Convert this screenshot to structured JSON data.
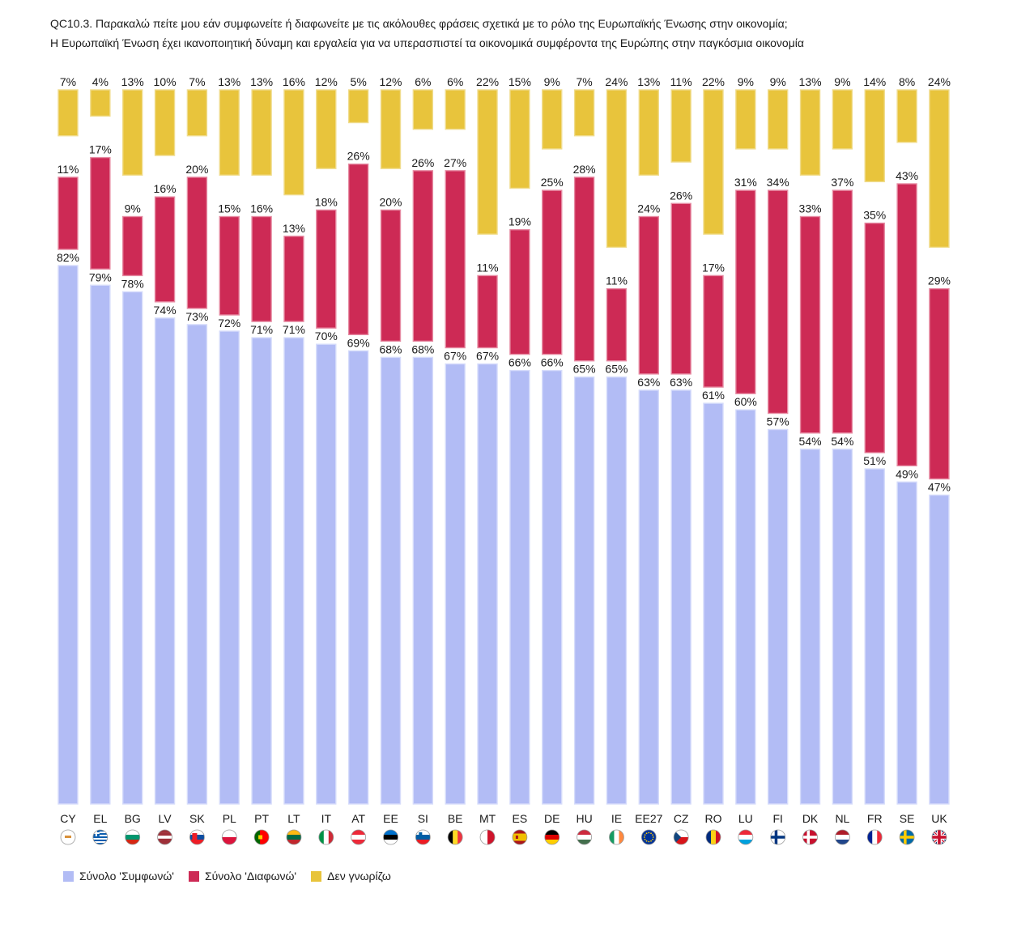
{
  "title": {
    "line1": "QC10.3. Παρακαλώ πείτε μου εάν συμφωνείτε ή διαφωνείτε με τις ακόλουθες φράσεις σχετικά με το ρόλο της Ευρωπαϊκής Ένωσης στην οικονομία;",
    "line2": "Η Ευρωπαϊκή Ένωση έχει ικανοποιητική δύναμη και εργαλεία για να υπερασπιστεί τα οικονομικά συμφέροντα της Ευρώπης στην παγκόσμια οικονομία"
  },
  "chart_data": {
    "type": "bar",
    "categories": [
      "CY",
      "EL",
      "BG",
      "LV",
      "SK",
      "PL",
      "PT",
      "LT",
      "IT",
      "AT",
      "EE",
      "SI",
      "BE",
      "MT",
      "ES",
      "DE",
      "HU",
      "IE",
      "EE27",
      "CZ",
      "RO",
      "LU",
      "FI",
      "DK",
      "NL",
      "FR",
      "SE",
      "UK"
    ],
    "series": [
      {
        "name": "Σύνολο 'Συμφωνώ'",
        "color": "#b2bcf5",
        "values": [
          82,
          79,
          78,
          74,
          73,
          72,
          71,
          71,
          70,
          69,
          68,
          68,
          67,
          67,
          66,
          66,
          65,
          65,
          63,
          63,
          61,
          60,
          57,
          54,
          54,
          51,
          49,
          47
        ]
      },
      {
        "name": "Σύνολο 'Διαφωνώ'",
        "color": "#cd2a55",
        "values": [
          11,
          17,
          9,
          16,
          20,
          15,
          16,
          13,
          18,
          26,
          20,
          26,
          27,
          11,
          19,
          25,
          28,
          11,
          24,
          26,
          17,
          31,
          34,
          33,
          37,
          35,
          43,
          29
        ]
      },
      {
        "name": "Δεν γνωρίζω",
        "color": "#e8c43c",
        "values": [
          7,
          4,
          13,
          10,
          7,
          13,
          13,
          16,
          12,
          5,
          12,
          6,
          6,
          22,
          15,
          9,
          7,
          24,
          13,
          11,
          22,
          9,
          9,
          13,
          9,
          14,
          8,
          24
        ]
      }
    ],
    "value_suffix": "%",
    "ylim": [
      0,
      100
    ],
    "grid": false,
    "legend_position": "bottom-left"
  },
  "flags": [
    "cy-flag-icon",
    "gr-flag-icon",
    "bg-flag-icon",
    "lv-flag-icon",
    "sk-flag-icon",
    "pl-flag-icon",
    "pt-flag-icon",
    "lt-flag-icon",
    "it-flag-icon",
    "at-flag-icon",
    "ee-flag-icon",
    "si-flag-icon",
    "be-flag-icon",
    "mt-flag-icon",
    "es-flag-icon",
    "de-flag-icon",
    "hu-flag-icon",
    "ie-flag-icon",
    "eu-flag-icon",
    "cz-flag-icon",
    "ro-flag-icon",
    "lu-flag-icon",
    "fi-flag-icon",
    "dk-flag-icon",
    "nl-flag-icon",
    "fr-flag-icon",
    "se-flag-icon",
    "uk-flag-icon"
  ]
}
